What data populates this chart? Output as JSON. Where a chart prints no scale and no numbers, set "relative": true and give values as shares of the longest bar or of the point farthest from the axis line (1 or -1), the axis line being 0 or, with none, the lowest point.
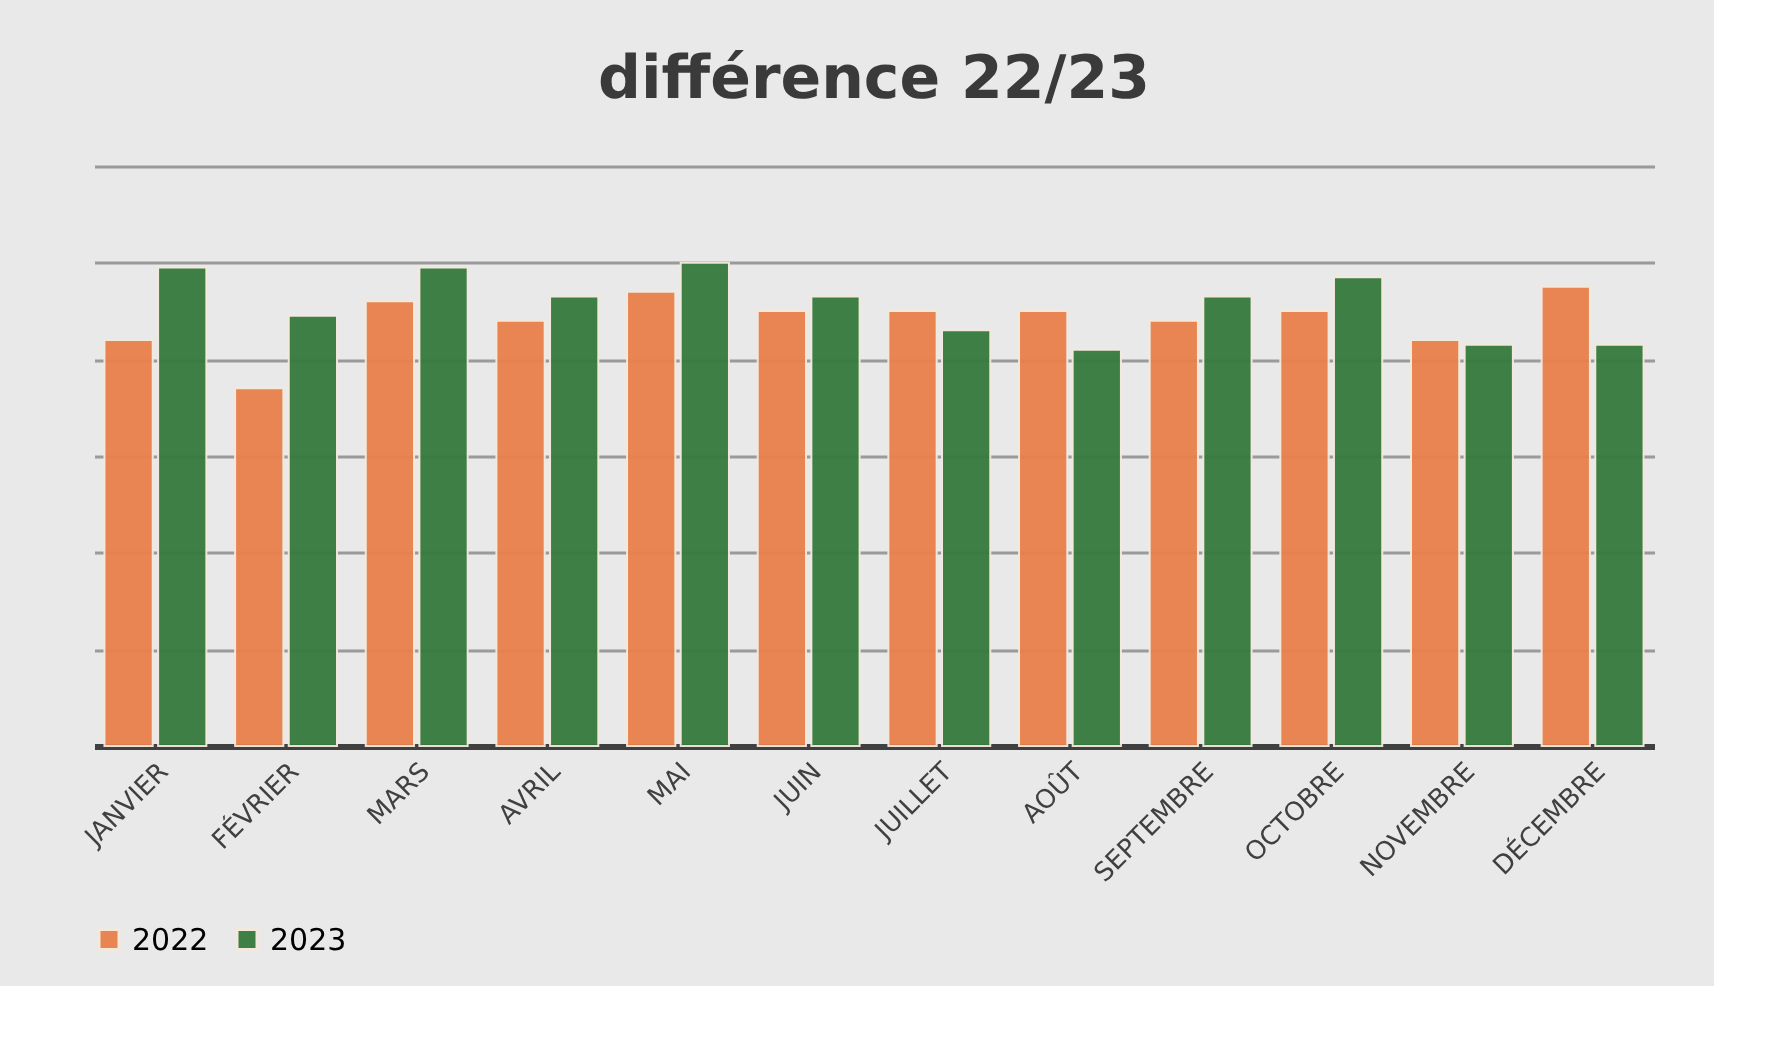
{
  "chart_data": {
    "type": "bar",
    "title": "différence 22/23",
    "relative": true,
    "grid": "y",
    "legend": "bottom",
    "categories": [
      "JANVIER",
      "FÉVRIER",
      "MARS",
      "AVRIL",
      "MAI",
      "JUIN",
      "JUILLET",
      "AOÛT",
      "SEPTEMBRE",
      "OCTOBRE",
      "NOVEMBRE",
      "DÉCEMBRE"
    ],
    "series": [
      {
        "name": "2022",
        "color": "#e8804a",
        "values": [
          0.84,
          0.74,
          0.92,
          0.88,
          0.94,
          0.9,
          0.9,
          0.9,
          0.88,
          0.9,
          0.84,
          0.95
        ]
      },
      {
        "name": "2023",
        "color": "#357a3d",
        "values": [
          0.99,
          0.89,
          0.99,
          0.93,
          1.0,
          0.93,
          0.86,
          0.82,
          0.93,
          0.97,
          0.83,
          0.83
        ]
      }
    ]
  }
}
